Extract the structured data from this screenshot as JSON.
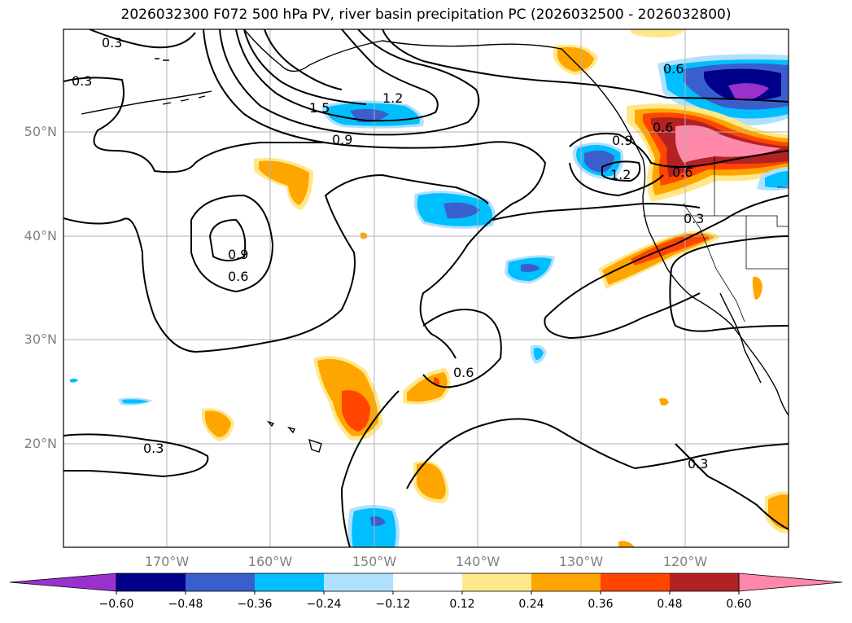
{
  "title": "2026032300 F072 500 hPa PV, river basin precipitation PC (2026032500 - 2026032800)",
  "lat_labels": [
    "50°N",
    "40°N",
    "30°N",
    "20°N"
  ],
  "lon_labels": [
    "170°W",
    "160°W",
    "150°W",
    "140°W",
    "130°W",
    "120°W"
  ],
  "contour_labels": [
    "0.3",
    "0.3",
    "1.5",
    "1.2",
    "0.9",
    "0.9",
    "0.6",
    "0.6",
    "0.6",
    "0.9",
    "1.2",
    "0.6",
    "0.3",
    "0.3",
    "0.6",
    "0.3"
  ],
  "colorbar": {
    "ticks": [
      "−0.60",
      "−0.48",
      "−0.36",
      "−0.24",
      "−0.12",
      "0.12",
      "0.24",
      "0.36",
      "0.48",
      "0.60"
    ],
    "colors": [
      "#9932cc",
      "#00008b",
      "#3a5fcd",
      "#00bfff",
      "#b0e0ff",
      "#ffffff",
      "#ffe88a",
      "#ffa500",
      "#ff4500",
      "#b22222",
      "#ff88aa"
    ]
  },
  "colors": {
    "neg_strong": "#9932cc",
    "neg_dark": "#00008b",
    "neg_mid": "#3a5fcd",
    "neg_light": "#00bfff",
    "neg_pale": "#b0e0ff",
    "pos_pale": "#ffe88a",
    "pos_light": "#ffa500",
    "pos_mid": "#ff4500",
    "pos_dark": "#b22222",
    "pos_strong": "#ff88aa"
  }
}
